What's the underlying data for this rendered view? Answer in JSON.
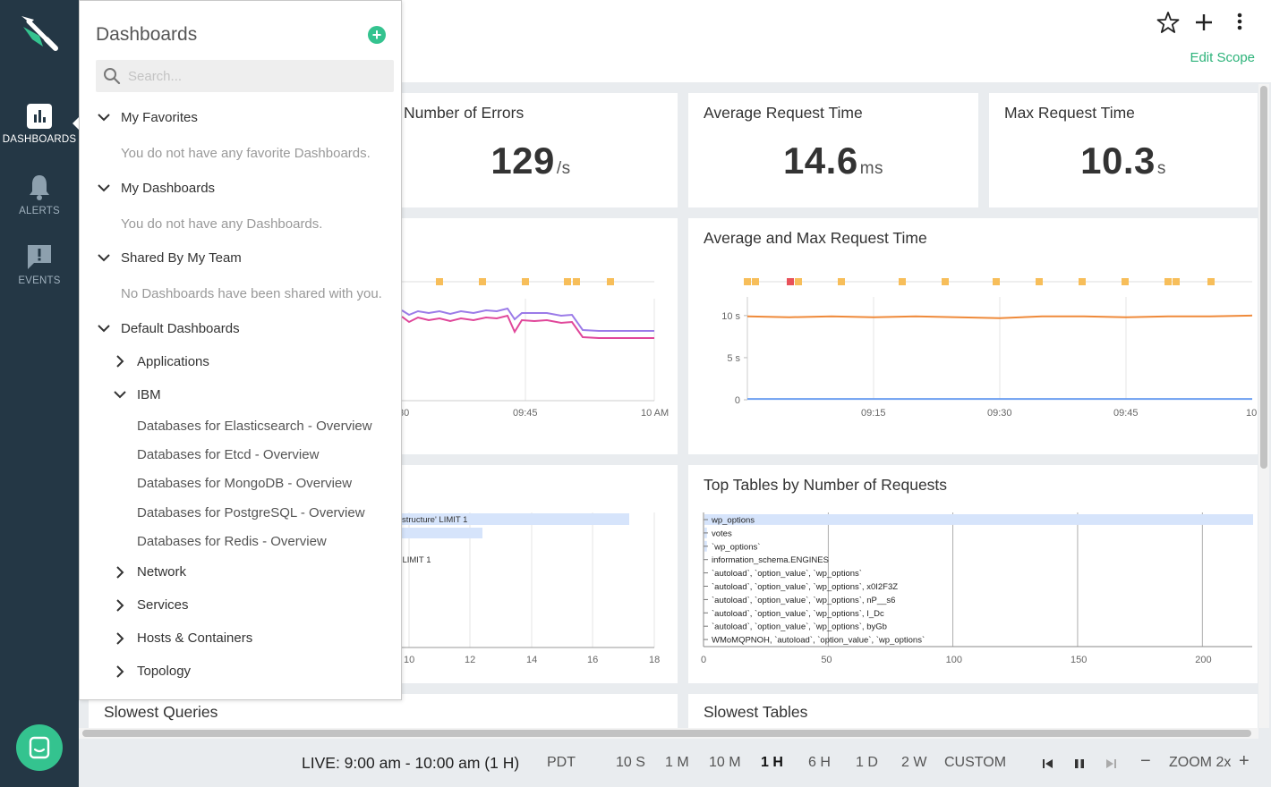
{
  "nav": {
    "items": [
      {
        "label": "DASHBOARDS",
        "icon": "bar-chart-icon",
        "active": true
      },
      {
        "label": "ALERTS",
        "icon": "bell-icon",
        "active": false
      },
      {
        "label": "EVENTS",
        "icon": "message-alert-icon",
        "active": false
      }
    ],
    "chat_icon": "chat-icon",
    "logo_icon": "shovel-logo-icon"
  },
  "header": {
    "edit_scope": "Edit Scope",
    "icons": [
      "star-icon",
      "plus-icon",
      "more-vertical-icon"
    ]
  },
  "dropdown": {
    "title": "Dashboards",
    "search_placeholder": "Search...",
    "my_favorites": "My Favorites",
    "my_favorites_empty": "You do not have any favorite Dashboards.",
    "my_dashboards": "My Dashboards",
    "my_dashboards_empty": "You do not have any Dashboards.",
    "shared": "Shared By My Team",
    "shared_empty": "No Dashboards have been shared with you.",
    "default": "Default Dashboards",
    "applications": "Applications",
    "ibm": "IBM",
    "ibm_items": [
      "Databases for Elasticsearch - Overview",
      "Databases for Etcd - Overview",
      "Databases for MongoDB - Overview",
      "Databases for PostgreSQL - Overview",
      "Databases for Redis - Overview"
    ],
    "network": "Network",
    "services": "Services",
    "hosts": "Hosts & Containers",
    "topology": "Topology"
  },
  "panels": {
    "errors": {
      "title": "Number of Errors",
      "value": "129",
      "unit": "/s"
    },
    "avg": {
      "title": "Average Request Time",
      "value": "14.6",
      "unit": "ms"
    },
    "max": {
      "title": "Max Request Time",
      "value": "10.3",
      "unit": "s"
    },
    "avg_max_chart": {
      "title": "Average and Max Request Time"
    },
    "top_tables": {
      "title": "Top Tables by Number of Requests"
    },
    "slowest_queries": {
      "title": "Slowest Queries"
    },
    "slowest_tables": {
      "title": "Slowest Tables"
    }
  },
  "left_line_chart": {
    "x_ticks": [
      "30",
      "09:45",
      "10 AM"
    ]
  },
  "left_bar_chart": {
    "labels": [
      "structure' LIMIT 1",
      "' LIMIT 1"
    ],
    "x_ticks": [
      "10",
      "12",
      "14",
      "16",
      "18"
    ]
  },
  "chart_data": [
    {
      "type": "line",
      "title": "Average and Max Request Time",
      "x": [
        "09:00",
        "09:05",
        "09:10",
        "09:15",
        "09:20",
        "09:25",
        "09:30",
        "09:35",
        "09:40",
        "09:45",
        "09:50",
        "09:55",
        "10"
      ],
      "x_ticks": [
        "09:15",
        "09:30",
        "09:45",
        "10"
      ],
      "y_ticks": [
        "0",
        "5 s",
        "10 s"
      ],
      "ylim": [
        0,
        12
      ],
      "series": [
        {
          "values": [
            9.9,
            9.8,
            9.9,
            9.8,
            9.9,
            9.8,
            9.7,
            9.9,
            9.9,
            9.8,
            9.9,
            9.9,
            10.0
          ],
          "color": "#ef8a3a"
        },
        {
          "values": [
            0.1,
            0.1,
            0.1,
            0.1,
            0.1,
            0.1,
            0.1,
            0.1,
            0.1,
            0.1,
            0.1,
            0.1,
            0.1
          ],
          "color": "#6c9ef0"
        }
      ]
    },
    {
      "type": "bar",
      "title": "Top Tables by Number of Requests",
      "categories": [
        "wp_options",
        "votes",
        "`wp_options`",
        "information_schema.ENGINES",
        "`autoload`, `option_value`, `wp_options`",
        "`autoload`, `option_value`, `wp_options`, x0I2F3Z",
        "`autoload`, `option_value`, `wp_options`, nP__s6",
        "`autoload`, `option_value`, `wp_options`, I_Dc",
        "`autoload`, `option_value`, `wp_options`, byGb",
        "WMoMQPNOH, `autoload`, `option_value`, `wp_options`"
      ],
      "values": [
        220,
        1,
        1,
        0,
        0,
        0,
        0,
        0,
        0,
        0
      ],
      "x_ticks": [
        "0",
        "50",
        "100",
        "150",
        "200"
      ],
      "xlim": [
        0,
        220
      ]
    }
  ],
  "bottom": {
    "live": "LIVE: 9:00 am - 10:00 am (1 H)",
    "tz": "PDT",
    "ranges": [
      "10 S",
      "1 M",
      "10 M",
      "1 H",
      "6 H",
      "1 D",
      "2 W",
      "CUSTOM"
    ],
    "selected_range": "1 H",
    "zoom": "ZOOM 2x"
  }
}
